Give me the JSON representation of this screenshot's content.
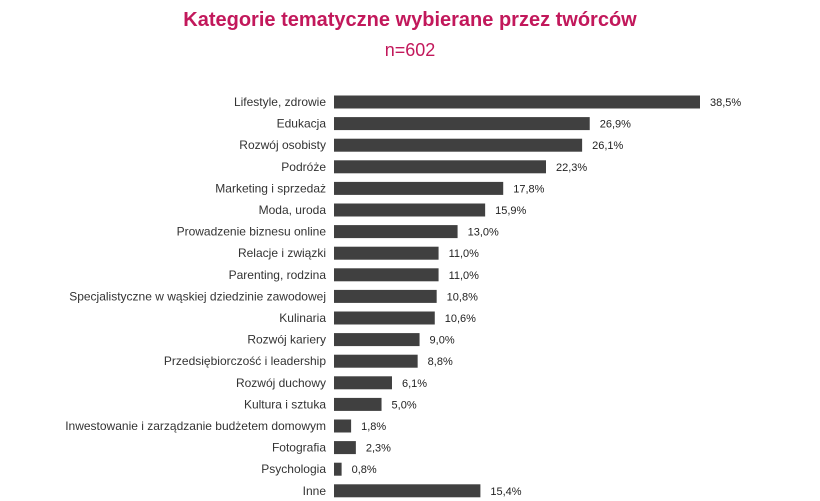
{
  "chart_data": {
    "type": "bar",
    "orientation": "horizontal",
    "title": "Kategorie tematyczne wybierane przez twórców",
    "subtitle": "n=602",
    "categories": [
      "Lifestyle, zdrowie",
      "Edukacja",
      "Rozwój osobisty",
      "Podróże",
      "Marketing i sprzedaż",
      "Moda, uroda",
      "Prowadzenie biznesu online",
      "Relacje i związki",
      "Parenting, rodzina",
      "Specjalistyczne w wąskiej dziedzinie zawodowej",
      "Kulinaria",
      "Rozwój kariery",
      "Przedsiębiorczość i leadership",
      "Rozwój duchowy",
      "Kultura i sztuka",
      "Inwestowanie i zarządzanie budżetem domowym",
      "Fotografia",
      "Psychologia",
      "Inne"
    ],
    "values": [
      38.5,
      26.9,
      26.1,
      22.3,
      17.8,
      15.9,
      13.0,
      11.0,
      11.0,
      10.8,
      10.6,
      9.0,
      8.8,
      6.1,
      5.0,
      1.8,
      2.3,
      0.8,
      15.4
    ],
    "value_labels": [
      "38,5%",
      "26,9%",
      "26,1%",
      "22,3%",
      "17,8%",
      "15,9%",
      "13,0%",
      "11,0%",
      "11,0%",
      "10,8%",
      "10,6%",
      "9,0%",
      "8,8%",
      "6,1%",
      "5,0%",
      "1,8%",
      "2,3%",
      "0,8%",
      "15,4%"
    ],
    "unit": "%",
    "bar_color": "#404040",
    "title_color": "#c2185b",
    "grid": false,
    "legend": "none"
  }
}
